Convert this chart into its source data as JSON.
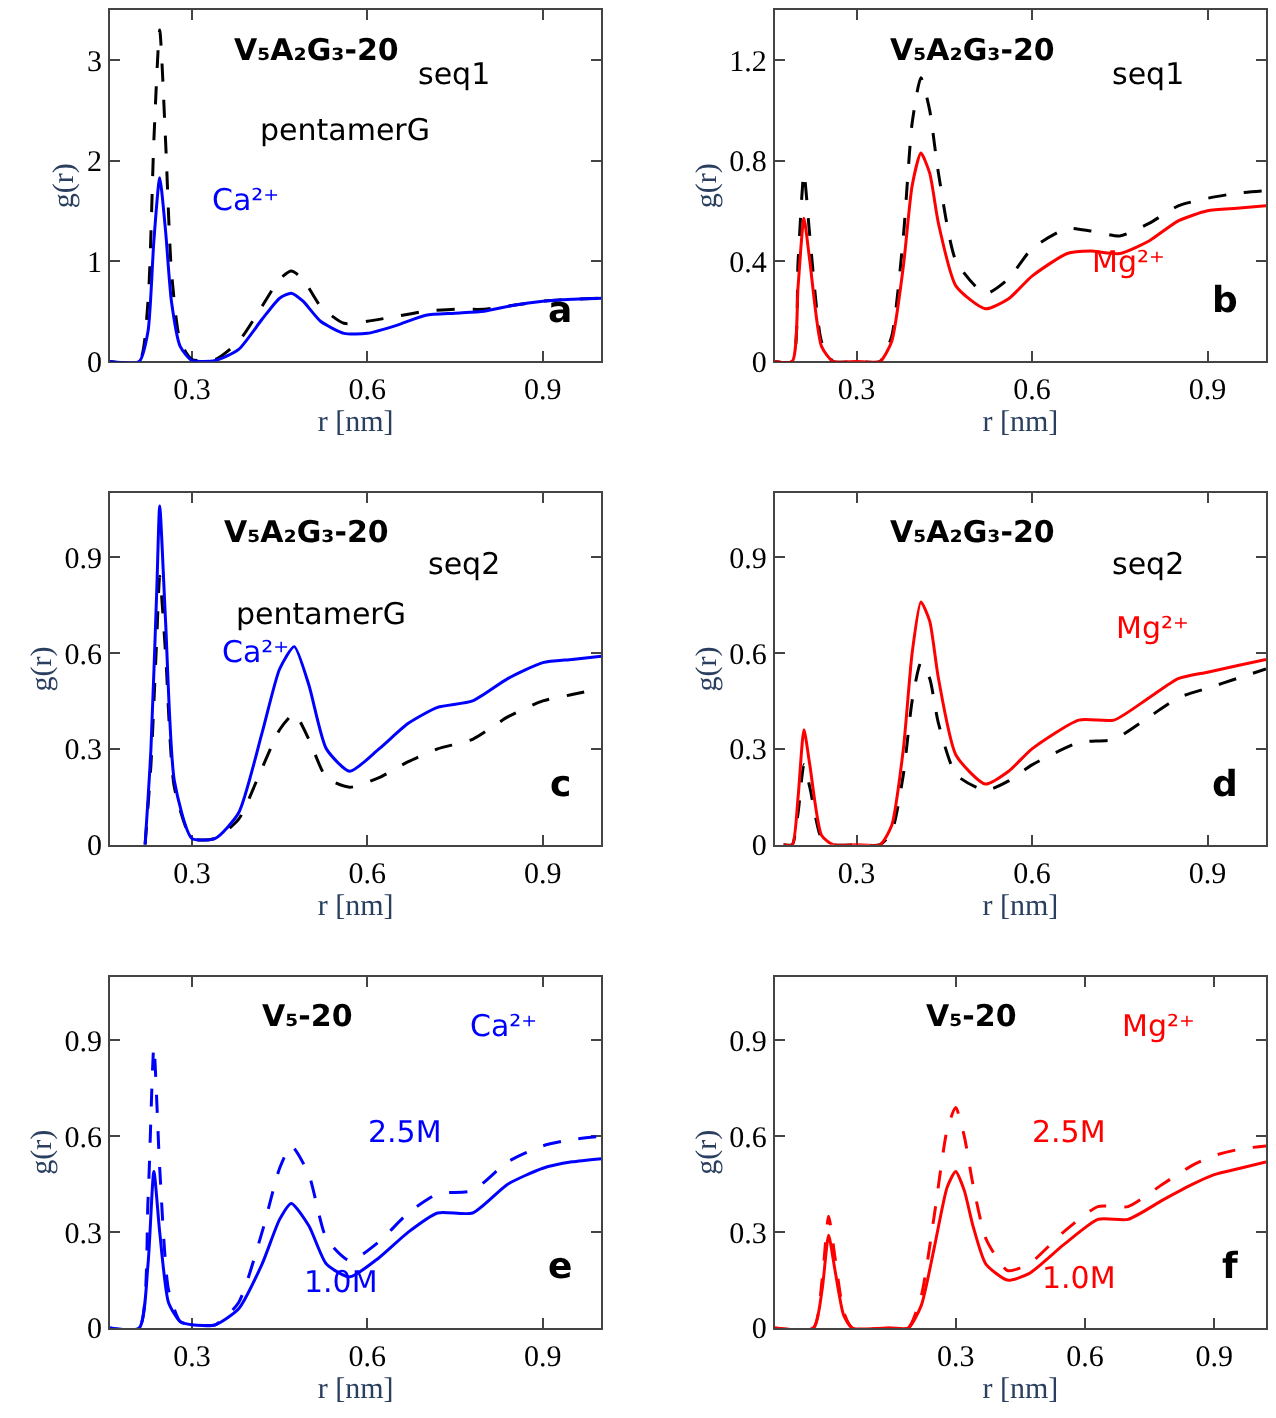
{
  "chart_data": [
    {
      "type": "line",
      "title": "V₅A₂G₃-20",
      "xlabel": "r [nm]",
      "ylabel": "g(r)",
      "xlim": [
        0.16,
        1.0
      ],
      "ylim": [
        0,
        3.5
      ],
      "xticks": [
        0.3,
        0.6,
        0.9
      ],
      "yticks": [
        0,
        1,
        2,
        3
      ],
      "annotations": [
        "seq1",
        "a"
      ],
      "x": [
        0.16,
        0.21,
        0.225,
        0.235,
        0.245,
        0.255,
        0.265,
        0.28,
        0.3,
        0.34,
        0.38,
        0.42,
        0.45,
        0.47,
        0.49,
        0.52,
        0.56,
        0.6,
        0.65,
        0.7,
        0.75,
        0.8,
        0.85,
        0.9,
        0.95,
        1.0
      ],
      "series": [
        {
          "name": "pentamerG",
          "color": "#000000",
          "line_style": "dashed",
          "values": [
            0,
            0,
            0.6,
            2.2,
            3.3,
            2.2,
            0.9,
            0.2,
            0.02,
            0.02,
            0.2,
            0.55,
            0.82,
            0.9,
            0.82,
            0.55,
            0.38,
            0.4,
            0.45,
            0.5,
            0.52,
            0.52,
            0.56,
            0.6,
            0.62,
            0.63
          ]
        },
        {
          "name": "Ca²⁺",
          "color": "#0000ff",
          "line_style": "solid",
          "values": [
            0,
            0,
            0.3,
            1.2,
            1.83,
            1.3,
            0.6,
            0.15,
            0.01,
            0.01,
            0.12,
            0.42,
            0.63,
            0.68,
            0.6,
            0.4,
            0.28,
            0.28,
            0.36,
            0.46,
            0.48,
            0.5,
            0.56,
            0.6,
            0.62,
            0.63
          ]
        }
      ]
    },
    {
      "type": "line",
      "title": "V₅A₂G₃-20",
      "xlabel": "r [nm]",
      "ylabel": "g(r)",
      "xlim": [
        0.16,
        1.0
      ],
      "ylim": [
        0,
        1.4
      ],
      "xticks": [
        0.3,
        0.6,
        0.9
      ],
      "yticks": [
        0,
        0.4,
        0.8,
        1.2
      ],
      "annotations": [
        "seq1",
        "b"
      ],
      "x": [
        0.16,
        0.19,
        0.2,
        0.21,
        0.22,
        0.24,
        0.26,
        0.3,
        0.34,
        0.36,
        0.38,
        0.395,
        0.41,
        0.425,
        0.44,
        0.47,
        0.52,
        0.56,
        0.6,
        0.66,
        0.7,
        0.75,
        0.8,
        0.85,
        0.9,
        0.95,
        1.0
      ],
      "series": [
        {
          "color": "#000000",
          "line_style": "dashed",
          "values": [
            0,
            0,
            0.4,
            0.75,
            0.5,
            0.08,
            0,
            0,
            0,
            0.1,
            0.5,
            0.95,
            1.13,
            1.0,
            0.75,
            0.4,
            0.27,
            0.33,
            0.45,
            0.53,
            0.52,
            0.5,
            0.55,
            0.62,
            0.65,
            0.67,
            0.68
          ]
        },
        {
          "name": "Mg²⁺",
          "color": "#ff0000",
          "line_style": "solid",
          "values": [
            0,
            0,
            0.3,
            0.57,
            0.4,
            0.06,
            0,
            0,
            0,
            0.08,
            0.38,
            0.7,
            0.83,
            0.75,
            0.55,
            0.3,
            0.21,
            0.25,
            0.34,
            0.43,
            0.44,
            0.43,
            0.48,
            0.56,
            0.6,
            0.61,
            0.62
          ]
        }
      ]
    },
    {
      "type": "line",
      "title": "V₅A₂G₃-20",
      "xlabel": "r [nm]",
      "ylabel": "g(r)",
      "xlim": [
        0.16,
        1.0
      ],
      "ylim": [
        0,
        1.1
      ],
      "xticks": [
        0.3,
        0.6,
        0.9
      ],
      "yticks": [
        0,
        0.3,
        0.6,
        0.9
      ],
      "annotations": [
        "seq2",
        "c"
      ],
      "x": [
        0.22,
        0.23,
        0.24,
        0.245,
        0.255,
        0.27,
        0.3,
        0.34,
        0.38,
        0.42,
        0.45,
        0.475,
        0.5,
        0.53,
        0.57,
        0.62,
        0.67,
        0.72,
        0.78,
        0.84,
        0.9,
        0.95,
        1.0
      ],
      "series": [
        {
          "name": "pentamerG",
          "color": "#000000",
          "line_style": "dashed",
          "values": [
            0,
            0.25,
            0.65,
            0.84,
            0.6,
            0.18,
            0.02,
            0.02,
            0.08,
            0.24,
            0.36,
            0.41,
            0.33,
            0.21,
            0.18,
            0.21,
            0.26,
            0.3,
            0.33,
            0.4,
            0.45,
            0.47,
            0.49
          ]
        },
        {
          "name": "Ca²⁺",
          "color": "#0000ff",
          "line_style": "solid",
          "values": [
            0,
            0.3,
            0.8,
            1.06,
            0.7,
            0.2,
            0.02,
            0.02,
            0.1,
            0.35,
            0.55,
            0.62,
            0.5,
            0.3,
            0.23,
            0.3,
            0.38,
            0.43,
            0.45,
            0.52,
            0.57,
            0.58,
            0.59
          ]
        }
      ]
    },
    {
      "type": "line",
      "title": "V₅A₂G₃-20",
      "xlabel": "r [nm]",
      "ylabel": "g(r)",
      "xlim": [
        0.16,
        1.0
      ],
      "ylim": [
        0,
        1.1
      ],
      "xticks": [
        0.3,
        0.6,
        0.9
      ],
      "yticks": [
        0,
        0.3,
        0.6,
        0.9
      ],
      "annotations": [
        "seq2",
        "d"
      ],
      "x": [
        0.175,
        0.19,
        0.2,
        0.21,
        0.22,
        0.24,
        0.26,
        0.3,
        0.34,
        0.36,
        0.38,
        0.395,
        0.41,
        0.425,
        0.44,
        0.47,
        0.52,
        0.56,
        0.6,
        0.68,
        0.74,
        0.8,
        0.85,
        0.9,
        0.95,
        1.0
      ],
      "series": [
        {
          "color": "#000000",
          "line_style": "dashed",
          "values": [
            0,
            0,
            0.1,
            0.25,
            0.18,
            0.02,
            0,
            0,
            0,
            0.04,
            0.22,
            0.45,
            0.57,
            0.52,
            0.38,
            0.22,
            0.17,
            0.2,
            0.25,
            0.32,
            0.33,
            0.4,
            0.46,
            0.49,
            0.52,
            0.55
          ]
        },
        {
          "name": "Mg²⁺",
          "color": "#ff0000",
          "line_style": "solid",
          "values": [
            0,
            0,
            0.15,
            0.36,
            0.25,
            0.03,
            0,
            0,
            0,
            0.06,
            0.3,
            0.6,
            0.76,
            0.7,
            0.52,
            0.28,
            0.19,
            0.23,
            0.3,
            0.39,
            0.39,
            0.46,
            0.52,
            0.54,
            0.56,
            0.58
          ]
        }
      ]
    },
    {
      "type": "line",
      "title": "V₅-20",
      "xlabel": "r [nm]",
      "ylabel": "g(r)",
      "xlim": [
        0.16,
        1.0
      ],
      "ylim": [
        0,
        1.1
      ],
      "xticks": [
        0.3,
        0.6,
        0.9
      ],
      "yticks": [
        0,
        0.3,
        0.6,
        0.9
      ],
      "annotations": [
        "Ca²⁺",
        "e"
      ],
      "x": [
        0.16,
        0.21,
        0.225,
        0.235,
        0.245,
        0.26,
        0.28,
        0.3,
        0.34,
        0.38,
        0.42,
        0.45,
        0.47,
        0.5,
        0.53,
        0.57,
        0.62,
        0.67,
        0.72,
        0.78,
        0.84,
        0.9,
        0.95,
        1.0
      ],
      "series": [
        {
          "name": "2.5M",
          "color": "#0000ff",
          "line_style": "dashed",
          "values": [
            0,
            0,
            0.4,
            0.88,
            0.5,
            0.12,
            0.02,
            0.01,
            0.01,
            0.08,
            0.3,
            0.5,
            0.57,
            0.48,
            0.28,
            0.21,
            0.27,
            0.36,
            0.42,
            0.43,
            0.52,
            0.57,
            0.59,
            0.6
          ]
        },
        {
          "name": "1.0M",
          "color": "#0000ff",
          "line_style": "solid",
          "values": [
            0,
            0,
            0.2,
            0.49,
            0.3,
            0.08,
            0.02,
            0.01,
            0.01,
            0.06,
            0.2,
            0.34,
            0.39,
            0.32,
            0.2,
            0.16,
            0.22,
            0.3,
            0.36,
            0.36,
            0.45,
            0.5,
            0.52,
            0.53
          ]
        }
      ]
    },
    {
      "type": "line",
      "title": "V₅-20",
      "xlabel": "r [nm]",
      "ylabel": "g(r)",
      "xlim": [
        -0.12,
        1.02
      ],
      "ylim": [
        0,
        1.1
      ],
      "xticks": [
        0.3,
        0.6,
        0.9
      ],
      "yticks": [
        0,
        0.3,
        0.6,
        0.9
      ],
      "annotations": [
        "Mg²⁺",
        "f"
      ],
      "x": [
        -0.12,
        -0.03,
        -0.01,
        0.005,
        0.02,
        0.04,
        0.06,
        0.15,
        0.19,
        0.22,
        0.25,
        0.28,
        0.3,
        0.32,
        0.34,
        0.37,
        0.42,
        0.47,
        0.55,
        0.63,
        0.7,
        0.78,
        0.85,
        0.9,
        0.96,
        1.02
      ],
      "series": [
        {
          "name": "2.5M",
          "color": "#ff0000",
          "line_style": "dashed",
          "values": [
            0,
            0,
            0.15,
            0.35,
            0.22,
            0.05,
            0,
            0,
            0,
            0.1,
            0.35,
            0.62,
            0.69,
            0.6,
            0.45,
            0.28,
            0.18,
            0.2,
            0.3,
            0.38,
            0.38,
            0.45,
            0.51,
            0.54,
            0.56,
            0.57
          ]
        },
        {
          "name": "1.0M",
          "color": "#ff0000",
          "line_style": "solid",
          "values": [
            0,
            0,
            0.12,
            0.29,
            0.18,
            0.04,
            0,
            0,
            0,
            0.07,
            0.25,
            0.44,
            0.49,
            0.43,
            0.32,
            0.2,
            0.15,
            0.17,
            0.26,
            0.34,
            0.34,
            0.4,
            0.45,
            0.48,
            0.5,
            0.52
          ]
        }
      ]
    }
  ]
}
